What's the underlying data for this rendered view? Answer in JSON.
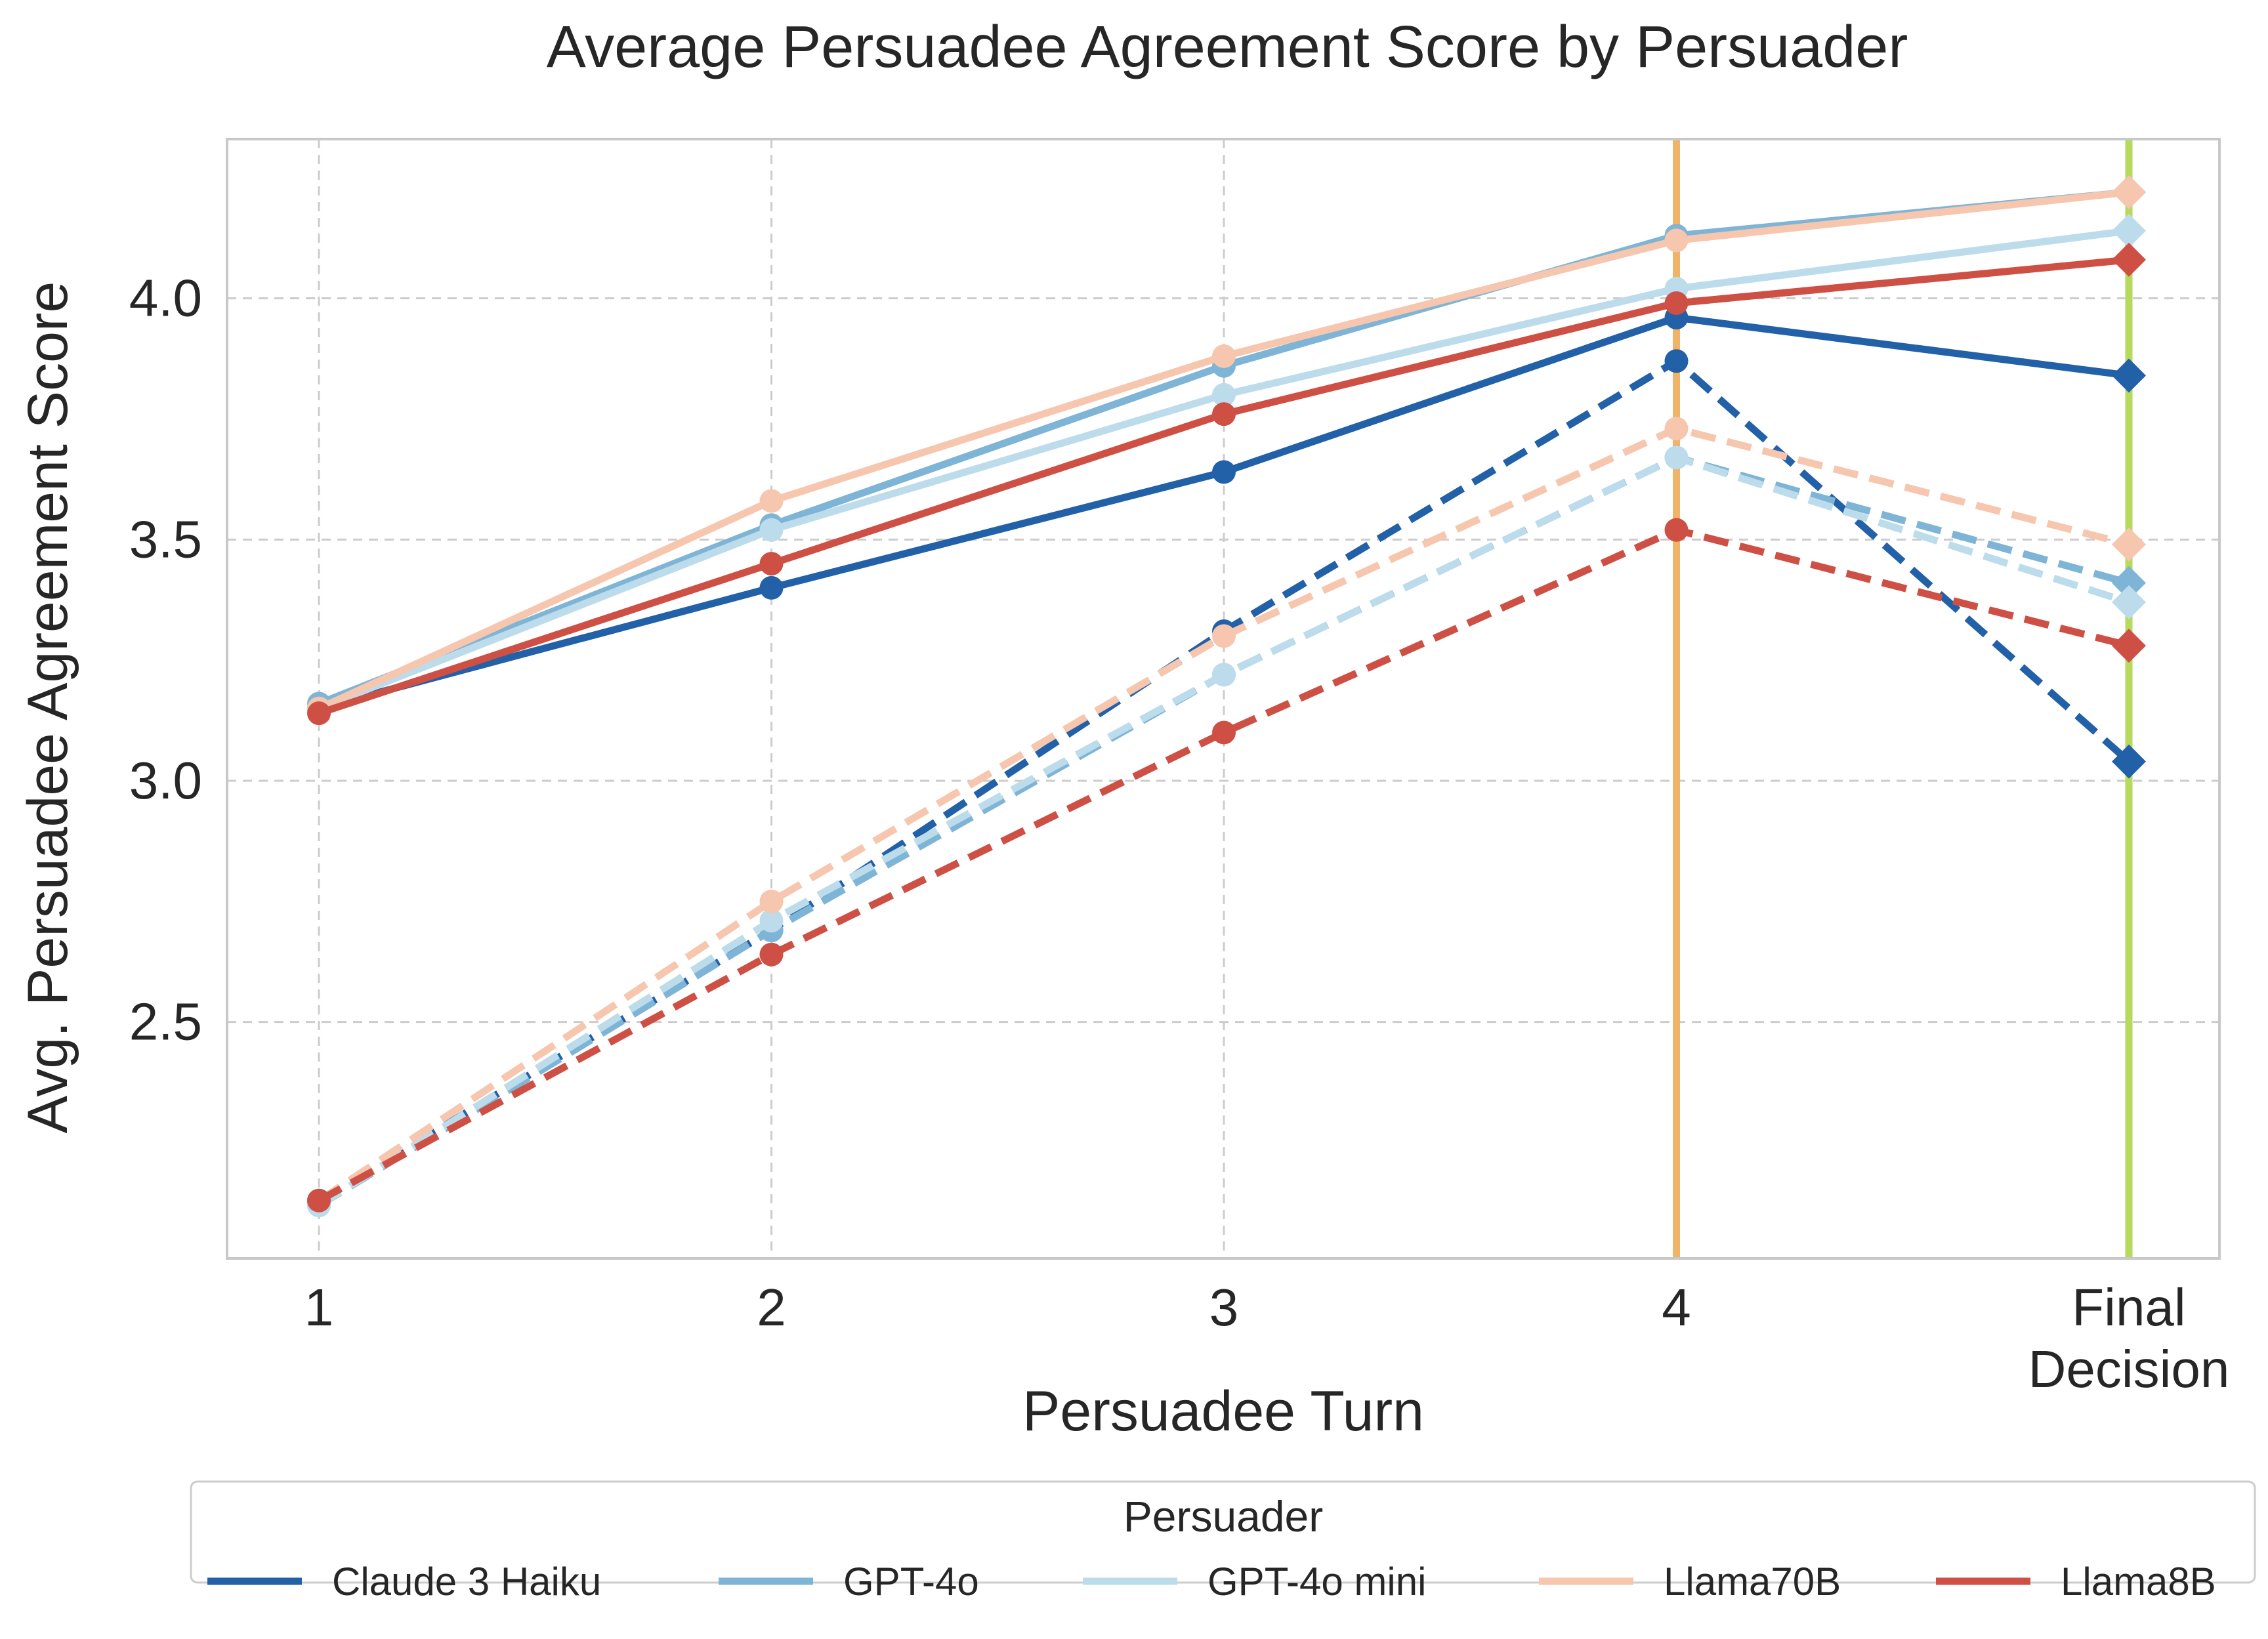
{
  "chart_data": {
    "type": "line",
    "title": "Average Persuadee Agreement Score by Persuader",
    "xlabel": "Persuadee Turn",
    "ylabel": "Avg. Persuadee Agreement Score",
    "categories": [
      "1",
      "2",
      "3",
      "4",
      "Final\nDecision"
    ],
    "ylim": [
      2.01,
      4.33
    ],
    "yticks": [
      2.5,
      3.0,
      3.5,
      4.0
    ],
    "grid": true,
    "vlines": [
      {
        "x_index": 3,
        "color": "#F0B36A"
      },
      {
        "x_index": 4,
        "color": "#B5DA5C"
      }
    ],
    "legend": {
      "title": "Persuader",
      "position": "bottom",
      "columns": 5
    },
    "line_styles": {
      "solid": "solid",
      "dashed": "dashed"
    },
    "series": [
      {
        "name": "Claude 3 Haiku",
        "color": "#2260A8",
        "solid": [
          3.15,
          3.4,
          3.64,
          3.96,
          3.84
        ],
        "dashed": [
          2.13,
          2.69,
          3.31,
          3.87,
          3.04
        ]
      },
      {
        "name": "GPT-4o",
        "color": "#7EB4D6",
        "solid": [
          3.16,
          3.53,
          3.86,
          4.13,
          4.22
        ],
        "dashed": [
          2.12,
          2.69,
          3.22,
          3.67,
          3.41
        ]
      },
      {
        "name": "GPT-4o mini",
        "color": "#BCDCEC",
        "solid": [
          3.15,
          3.52,
          3.8,
          4.02,
          4.14
        ],
        "dashed": [
          2.12,
          2.71,
          3.22,
          3.67,
          3.37
        ]
      },
      {
        "name": "Llama70B",
        "color": "#F6C6AE",
        "solid": [
          3.15,
          3.58,
          3.88,
          4.12,
          4.22
        ],
        "dashed": [
          2.13,
          2.75,
          3.3,
          3.73,
          3.49
        ]
      },
      {
        "name": "Llama8B",
        "color": "#CE5045",
        "solid": [
          3.14,
          3.45,
          3.76,
          3.99,
          4.08
        ],
        "dashed": [
          2.13,
          2.64,
          3.1,
          3.52,
          3.28
        ]
      }
    ]
  }
}
